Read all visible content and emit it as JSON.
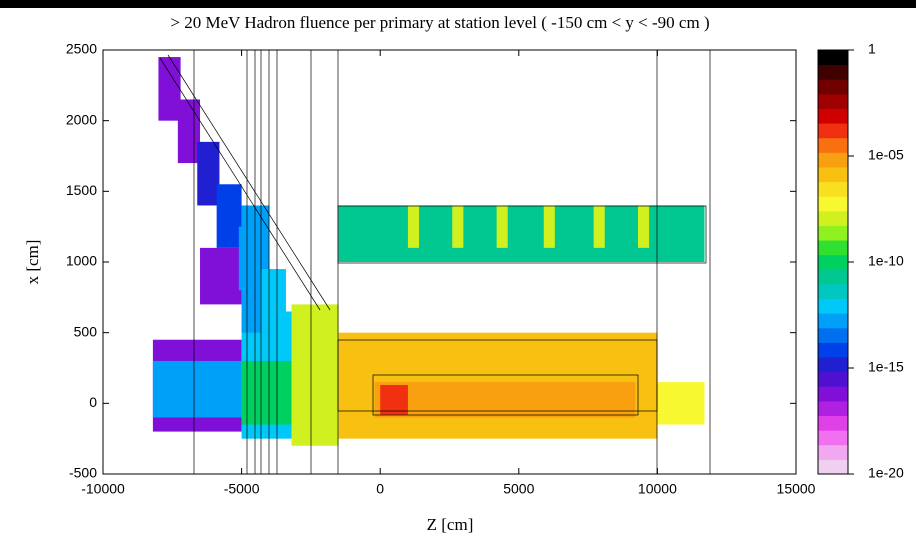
{
  "chart_data": {
    "type": "heatmap",
    "title": "> 20 MeV Hadron fluence per primary at station level ( -150 cm < y < -90 cm )",
    "xlabel": "Z [cm]",
    "ylabel": "x [cm]",
    "xlim": [
      -10000,
      15000
    ],
    "xticks": [
      -10000,
      -5000,
      0,
      5000,
      10000,
      15000
    ],
    "ylim": [
      -500,
      2500
    ],
    "yticks": [
      -500,
      0,
      500,
      1000,
      1500,
      2000,
      2500
    ],
    "colorbar": {
      "log": true,
      "lim": [
        1e-20,
        1
      ],
      "ticks": [
        {
          "value": 1e-20,
          "label": "1e-20"
        },
        {
          "value": 1e-15,
          "label": "1e-15"
        },
        {
          "value": 1e-10,
          "label": "1e-10"
        },
        {
          "value": 1e-05,
          "label": "1e-05"
        },
        1
      ],
      "colors": [
        "#f0d0f0",
        "#f0a8f0",
        "#f070f0",
        "#e040e8",
        "#b020e0",
        "#8010d8",
        "#5010d0",
        "#2020d0",
        "#0040e8",
        "#0070f0",
        "#00a0f8",
        "#00c8f8",
        "#00c8c0",
        "#00c890",
        "#00d060",
        "#30e030",
        "#90f020",
        "#d0f020",
        "#f8f830",
        "#f8e020",
        "#f8c010",
        "#f8a010",
        "#f87010",
        "#f03010",
        "#d00000",
        "#a00000",
        "#700000",
        "#400000",
        "#000000"
      ]
    },
    "regions": [
      {
        "zrange": [
          -8200,
          -5000
        ],
        "xrange": [
          -200,
          450
        ],
        "value": 1e-16
      },
      {
        "zrange": [
          -8200,
          -5000
        ],
        "xrange": [
          -100,
          300
        ],
        "value": 1e-13
      },
      {
        "zrange": [
          -5000,
          -3000
        ],
        "xrange": [
          -250,
          650
        ],
        "value": 1e-12
      },
      {
        "zrange": [
          -5000,
          -2500
        ],
        "xrange": [
          -150,
          300
        ],
        "value": 1e-10
      },
      {
        "zrange": [
          -3200,
          -1500
        ],
        "xrange": [
          -300,
          700
        ],
        "value": 1e-08
      },
      {
        "zrange": [
          -1500,
          10000
        ],
        "xrange": [
          -250,
          500
        ],
        "value": 1e-06
      },
      {
        "zrange": [
          -200,
          9200
        ],
        "xrange": [
          -100,
          150
        ],
        "value": 1e-05
      },
      {
        "zrange": [
          0,
          1000
        ],
        "xrange": [
          -80,
          130
        ],
        "value": 0.0001
      },
      {
        "zrange": [
          10000,
          11700
        ],
        "xrange": [
          -150,
          150
        ],
        "value": 1e-07
      },
      {
        "zrange": [
          -1500,
          11700
        ],
        "xrange": [
          1000,
          1400
        ],
        "value": 1e-11
      },
      {
        "zrange": [
          -5000,
          -4000
        ],
        "xrange": [
          500,
          1400
        ],
        "value": 1e-13
      },
      {
        "zrange": [
          -6500,
          -5000
        ],
        "xrange": [
          700,
          1100
        ],
        "value": 1e-16
      },
      {
        "zrange": [
          -8000,
          -7200
        ],
        "xrange": [
          2000,
          2450
        ],
        "value": 1e-16
      },
      {
        "zrange": [
          -7300,
          -6500
        ],
        "xrange": [
          1700,
          2150
        ],
        "value": 1e-16
      },
      {
        "zrange": [
          -6600,
          -5800
        ],
        "xrange": [
          1400,
          1850
        ],
        "value": 1e-15
      },
      {
        "zrange": [
          -5900,
          -5000
        ],
        "xrange": [
          1100,
          1550
        ],
        "value": 1e-14
      },
      {
        "zrange": [
          -5100,
          -4200
        ],
        "xrange": [
          800,
          1250
        ],
        "value": 1e-13
      },
      {
        "zrange": [
          -4300,
          -3400
        ],
        "xrange": [
          500,
          950
        ],
        "value": 1e-12
      },
      {
        "zrange": [
          1000,
          1400
        ],
        "xrange": [
          1100,
          1400
        ],
        "value": 1e-08
      },
      {
        "zrange": [
          2600,
          3000
        ],
        "xrange": [
          1100,
          1400
        ],
        "value": 1e-08
      },
      {
        "zrange": [
          4200,
          4600
        ],
        "xrange": [
          1100,
          1400
        ],
        "value": 1e-08
      },
      {
        "zrange": [
          5900,
          6300
        ],
        "xrange": [
          1100,
          1400
        ],
        "value": 1e-08
      },
      {
        "zrange": [
          7700,
          8100
        ],
        "xrange": [
          1100,
          1400
        ],
        "value": 1e-08
      },
      {
        "zrange": [
          9300,
          9700
        ],
        "xrange": [
          1100,
          1400
        ],
        "value": 1e-08
      }
    ]
  }
}
